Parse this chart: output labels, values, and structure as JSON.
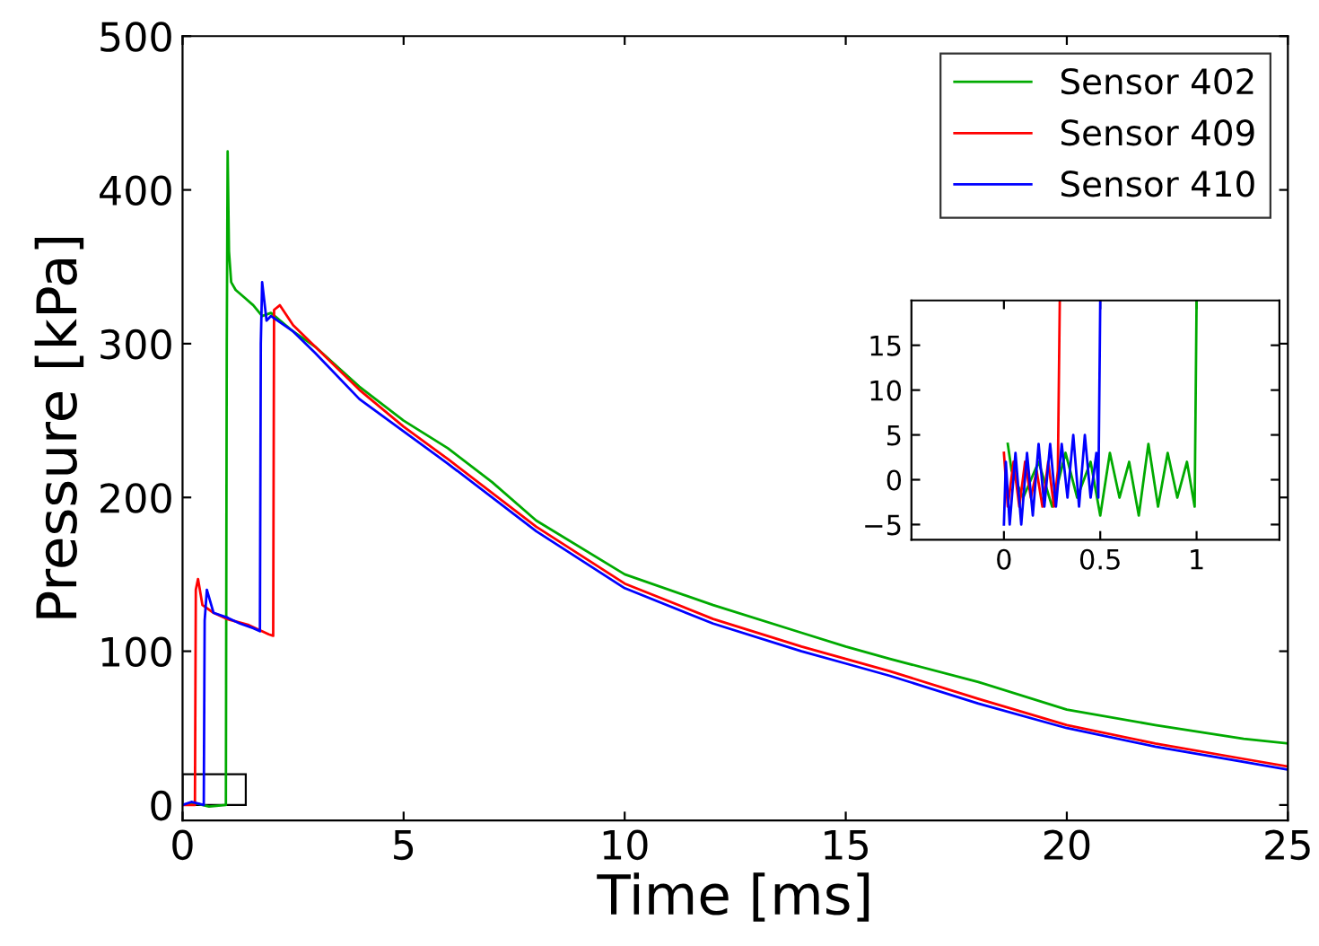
{
  "chart_data": [
    {
      "type": "line",
      "xlabel": "Time [ms]",
      "ylabel": "Pressure [kPa]",
      "xlim": [
        0,
        25
      ],
      "ylim": [
        -10,
        500
      ],
      "xticks": [
        0,
        5,
        10,
        15,
        20,
        25
      ],
      "yticks": [
        0,
        100,
        200,
        300,
        400,
        500
      ],
      "grid": false,
      "legend": "top right",
      "series": [
        {
          "name": "Sensor 402",
          "color": "#00aa00",
          "x": [
            0,
            0.3,
            0.6,
            0.98,
            1.0,
            1.02,
            1.05,
            1.1,
            1.2,
            1.4,
            1.6,
            1.8,
            2.0,
            2.5,
            3,
            4,
            5,
            6,
            7,
            8,
            10,
            12,
            14,
            15,
            16,
            18,
            20,
            22,
            24,
            25
          ],
          "values": [
            0,
            1,
            -1,
            0,
            300,
            425,
            360,
            340,
            335,
            330,
            325,
            318,
            320,
            308,
            298,
            272,
            250,
            232,
            210,
            185,
            150,
            130,
            112,
            103,
            95,
            80,
            62,
            52,
            43,
            40
          ]
        },
        {
          "name": "Sensor 409",
          "color": "#ff0000",
          "x": [
            0,
            0.28,
            0.3,
            0.35,
            0.45,
            0.7,
            1.0,
            1.5,
            1.95,
            2.05,
            2.07,
            2.2,
            2.5,
            3,
            4,
            5,
            6,
            8,
            10,
            12,
            14,
            15,
            16,
            18,
            20,
            22,
            24,
            25
          ],
          "values": [
            0,
            0,
            140,
            147,
            130,
            125,
            121,
            117,
            111,
            110,
            322,
            325,
            312,
            298,
            270,
            246,
            225,
            181,
            144,
            121,
            103,
            95,
            87,
            69,
            52,
            40,
            30,
            25
          ]
        },
        {
          "name": "Sensor 410",
          "color": "#0000ff",
          "x": [
            0,
            0.2,
            0.48,
            0.5,
            0.55,
            0.7,
            1.0,
            1.3,
            1.6,
            1.75,
            1.77,
            1.8,
            1.9,
            2.0,
            2.5,
            3,
            4,
            5,
            6,
            8,
            10,
            12,
            14,
            15,
            16,
            18,
            20,
            22,
            24,
            25
          ],
          "values": [
            0,
            2,
            0,
            120,
            140,
            125,
            122,
            118,
            115,
            113,
            300,
            340,
            315,
            318,
            308,
            294,
            264,
            243,
            222,
            178,
            141,
            118,
            100,
            92,
            84,
            66,
            50,
            38,
            28,
            23
          ]
        }
      ]
    },
    {
      "type": "line",
      "xlim": [
        -0.48,
        1.43
      ],
      "ylim": [
        -6.7,
        20
      ],
      "xticks": [
        0,
        0.5,
        1
      ],
      "yticks": [
        {
          "value": -5,
          "label": "−5"
        },
        0,
        5,
        10,
        15
      ],
      "grid": false,
      "legend": false,
      "series": [
        {
          "color": "#00aa00",
          "x": [
            0.02,
            0.04,
            0.1,
            0.18,
            0.25,
            0.32,
            0.38,
            0.45,
            0.5,
            0.55,
            0.6,
            0.65,
            0.7,
            0.75,
            0.8,
            0.85,
            0.9,
            0.95,
            0.99,
            1.0
          ],
          "values": [
            4,
            1,
            -2,
            2,
            -3,
            3,
            -2,
            2,
            -4,
            3,
            -2,
            2,
            -4,
            4,
            -3,
            3,
            -2,
            2,
            -3,
            20
          ]
        },
        {
          "color": "#ff0000",
          "x": [
            0,
            0.02,
            0.05,
            0.08,
            0.11,
            0.14,
            0.17,
            0.2,
            0.23,
            0.26,
            0.28,
            0.29
          ],
          "values": [
            3,
            -3,
            2,
            -3,
            2,
            -2,
            1,
            -3,
            2,
            -3,
            1,
            20
          ]
        },
        {
          "color": "#0000ff",
          "x": [
            0,
            0.01,
            0.03,
            0.06,
            0.09,
            0.12,
            0.15,
            0.18,
            0.21,
            0.24,
            0.27,
            0.3,
            0.33,
            0.36,
            0.39,
            0.42,
            0.45,
            0.48,
            0.49,
            0.5
          ],
          "values": [
            -5,
            2,
            -5,
            3,
            -5,
            3,
            -4,
            4,
            -3,
            4,
            -3,
            4,
            -2,
            5,
            -3,
            5,
            -2,
            3,
            -2,
            20
          ]
        }
      ]
    }
  ]
}
